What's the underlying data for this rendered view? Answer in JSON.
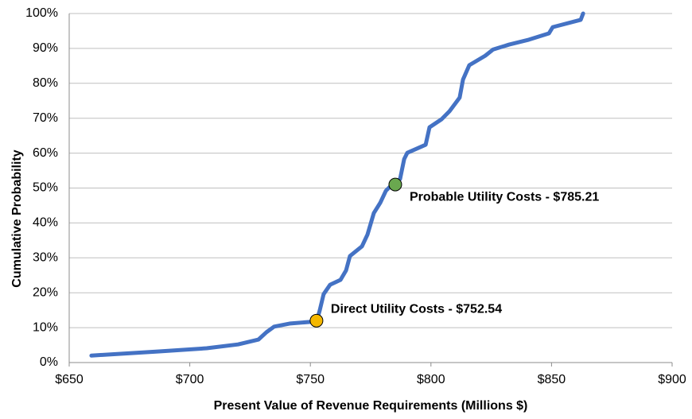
{
  "chart_data": {
    "type": "line",
    "xlabel": "Present Value of Revenue Requirements (Millions $)",
    "ylabel": "Cumulative Probability",
    "series": [
      {
        "color": "#4472c4",
        "x": [
          659.2,
          687.3,
          707,
          720,
          728.5,
          731.8,
          735,
          741.7,
          752.6,
          753.9,
          755.5,
          758.2,
          762.5,
          764.8,
          766.4,
          771.4,
          773.7,
          776.3,
          779,
          781.3,
          783.9,
          787.2,
          788.9,
          790.2,
          797.8,
          799.4,
          804.4,
          807.7,
          811.9,
          813.3,
          815.9,
          822.5,
          825.8,
          832.4,
          840.6,
          848.9,
          850.5,
          862.1,
          863.1
        ],
        "values": [
          2.0,
          3.2,
          4.1,
          5.2,
          6.6,
          8.7,
          10.3,
          11.2,
          11.8,
          15,
          19.6,
          22.3,
          23.7,
          26.4,
          30.5,
          33.3,
          36.7,
          42.8,
          45.8,
          49.2,
          51.0,
          52.6,
          58.3,
          60.1,
          62.4,
          67.4,
          69.7,
          72,
          75.9,
          81.1,
          85.2,
          87.9,
          89.7,
          91.1,
          92.5,
          94.3,
          96.1,
          98.2,
          100
        ]
      }
    ],
    "points": [
      {
        "x": 752.54,
        "y": 12,
        "color": "#f5b800",
        "label": "Direct Utility Costs - $752.54"
      },
      {
        "x": 785.21,
        "y": 51,
        "color": "#6aa84f",
        "label": "Probable Utility Costs - $785.21"
      }
    ],
    "xlim": [
      650,
      900
    ],
    "xticks": [
      {
        "value": 650,
        "label": "$650"
      },
      {
        "value": 700,
        "label": "$700"
      },
      {
        "value": 750,
        "label": "$750"
      },
      {
        "value": 800,
        "label": "$800"
      },
      {
        "value": 850,
        "label": "$850"
      },
      {
        "value": 900,
        "label": "$900"
      }
    ],
    "ylim": [
      0,
      100
    ],
    "yticks": [
      {
        "value": 0,
        "label": "0%"
      },
      {
        "value": 10,
        "label": "10%"
      },
      {
        "value": 20,
        "label": "20%"
      },
      {
        "value": 30,
        "label": "30%"
      },
      {
        "value": 40,
        "label": "40%"
      },
      {
        "value": 50,
        "label": "50%"
      },
      {
        "value": 60,
        "label": "60%"
      },
      {
        "value": 70,
        "label": "70%"
      },
      {
        "value": 80,
        "label": "80%"
      },
      {
        "value": 90,
        "label": "90%"
      },
      {
        "value": 100,
        "label": "100%"
      }
    ],
    "grid": true
  }
}
